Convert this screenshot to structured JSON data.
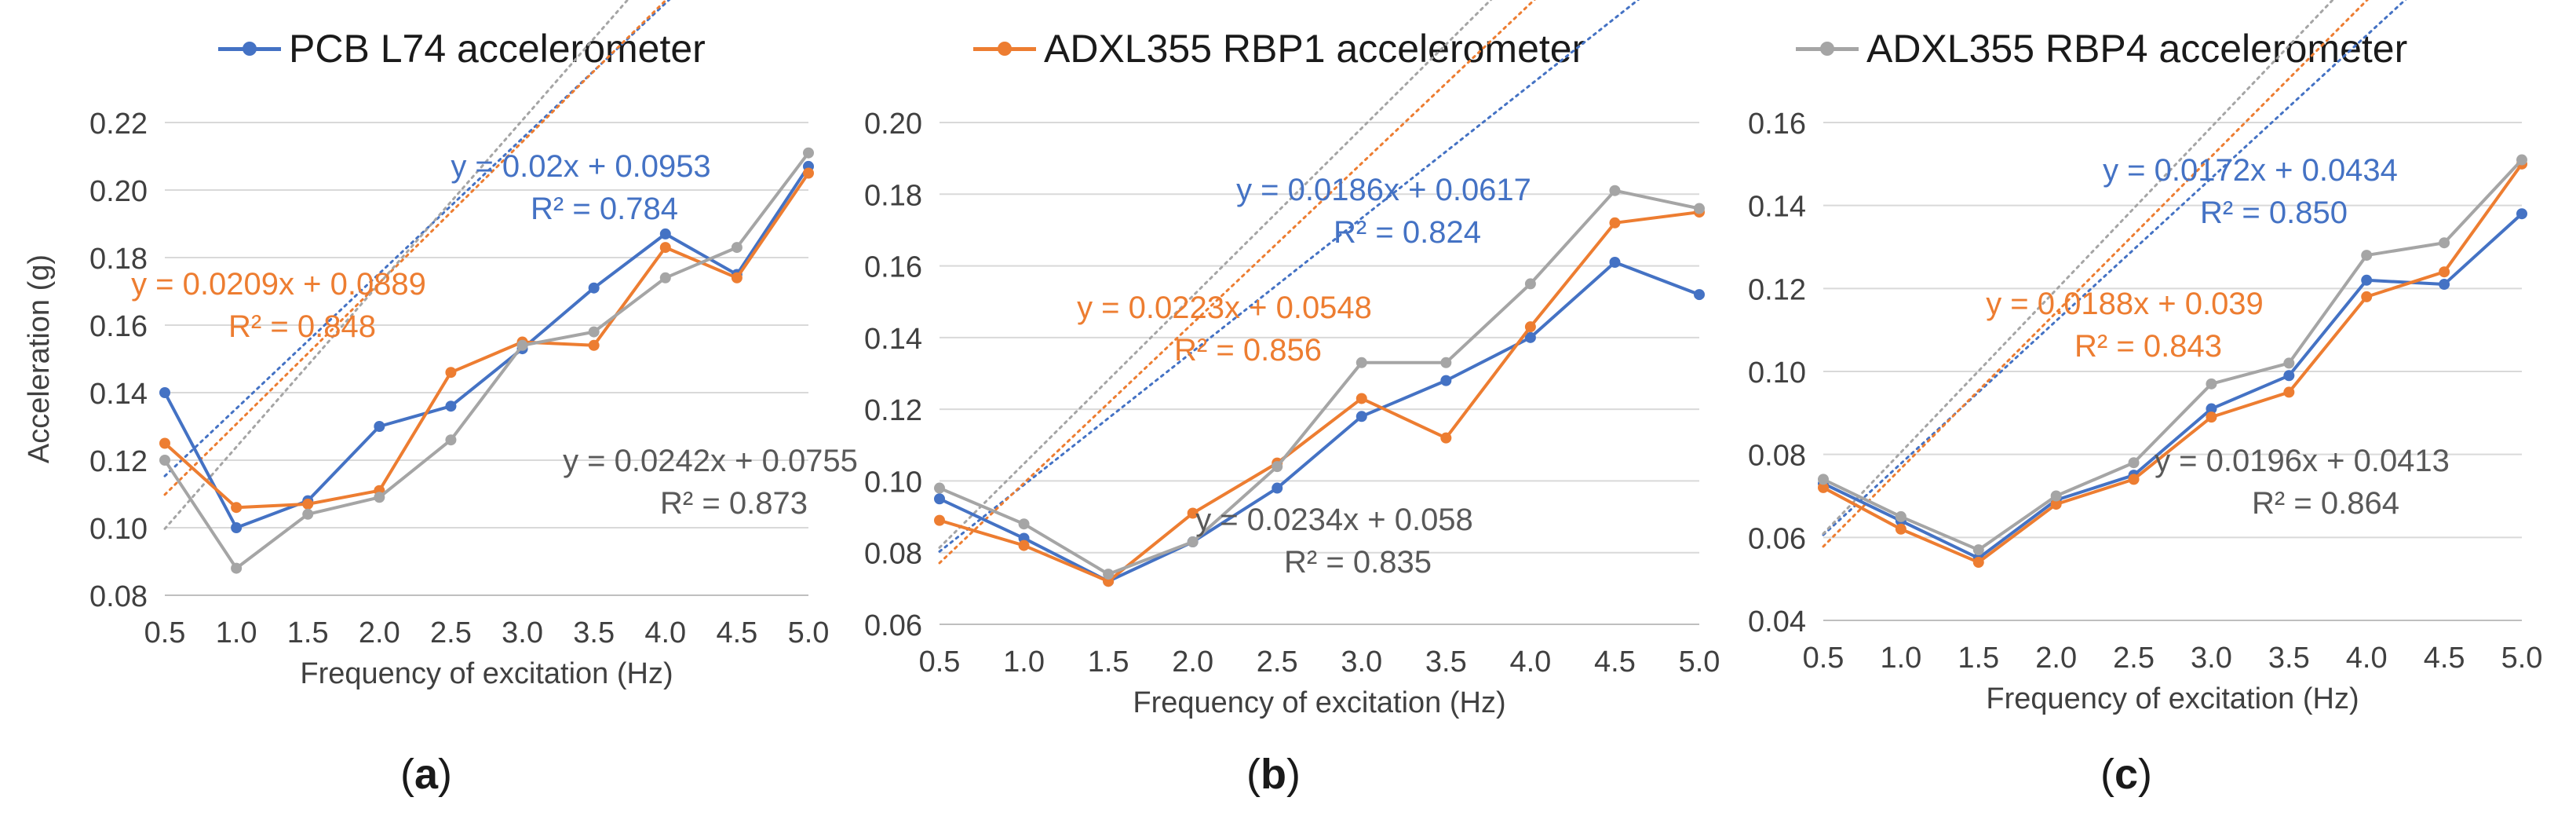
{
  "legend": [
    {
      "name": "PCB L74 accelerometer",
      "color": "#4472c4"
    },
    {
      "name": "ADXL355 RBP1 accelerometer",
      "color": "#ed7d31"
    },
    {
      "name": "ADXL355 RBP4 accelerometer",
      "color": "#a5a5a5"
    }
  ],
  "panel_labels": [
    {
      "open": "(",
      "letter": "a",
      "close": ")"
    },
    {
      "open": "(",
      "letter": "b",
      "close": ")"
    },
    {
      "open": "(",
      "letter": "c",
      "close": ")"
    }
  ],
  "chart_data": [
    {
      "type": "line",
      "panel": "a",
      "xlabel": "Frequency of excitation (Hz)",
      "ylabel": "Acceleration (g)",
      "categories": [
        "0.5",
        "1.0",
        "1.5",
        "2.0",
        "2.5",
        "3.0",
        "3.5",
        "4.0",
        "4.5",
        "5.0"
      ],
      "x": [
        0.5,
        1.0,
        1.5,
        2.0,
        2.5,
        3.0,
        3.5,
        4.0,
        4.5,
        5.0
      ],
      "ylim": [
        0.08,
        0.22
      ],
      "yticks": [
        "0.08",
        "0.10",
        "0.12",
        "0.14",
        "0.16",
        "0.18",
        "0.20",
        "0.22"
      ],
      "series": [
        {
          "name": "PCB L74 accelerometer",
          "color": "#4472c4",
          "values": [
            0.14,
            0.1,
            0.108,
            0.13,
            0.136,
            0.153,
            0.171,
            0.187,
            0.175,
            0.207
          ],
          "trendline": {
            "equation": "y = 0.02x + 0.0953",
            "r2": "R² = 0.784",
            "slope": 0.02,
            "intercept": 0.0953
          }
        },
        {
          "name": "ADXL355 RBP1 accelerometer",
          "color": "#ed7d31",
          "values": [
            0.125,
            0.106,
            0.107,
            0.111,
            0.146,
            0.155,
            0.154,
            0.183,
            0.174,
            0.205
          ],
          "trendline": {
            "equation": "y = 0.0209x + 0.0889",
            "r2": "R² = 0.848",
            "slope": 0.0209,
            "intercept": 0.0889
          }
        },
        {
          "name": "ADXL355 RBP4 accelerometer",
          "color": "#a5a5a5",
          "values": [
            0.12,
            0.088,
            0.104,
            0.109,
            0.126,
            0.154,
            0.158,
            0.174,
            0.183,
            0.211
          ],
          "trendline": {
            "equation": "y = 0.0242x + 0.0755",
            "r2": "R² = 0.873",
            "slope": 0.0242,
            "intercept": 0.0755
          }
        }
      ]
    },
    {
      "type": "line",
      "panel": "b",
      "xlabel": "Frequency of excitation (Hz)",
      "ylabel": "",
      "categories": [
        "0.5",
        "1.0",
        "1.5",
        "2.0",
        "2.5",
        "3.0",
        "3.5",
        "4.0",
        "4.5",
        "5.0"
      ],
      "x": [
        0.5,
        1.0,
        1.5,
        2.0,
        2.5,
        3.0,
        3.5,
        4.0,
        4.5,
        5.0
      ],
      "ylim": [
        0.06,
        0.2
      ],
      "yticks": [
        "0.06",
        "0.08",
        "0.10",
        "0.12",
        "0.14",
        "0.16",
        "0.18",
        "0.20"
      ],
      "series": [
        {
          "name": "PCB L74 accelerometer",
          "color": "#4472c4",
          "values": [
            0.095,
            0.084,
            0.072,
            0.083,
            0.098,
            0.118,
            0.128,
            0.14,
            0.161,
            0.152
          ],
          "trendline": {
            "equation": "y = 0.0186x + 0.0617",
            "r2": "R² = 0.824",
            "slope": 0.0186,
            "intercept": 0.0617
          }
        },
        {
          "name": "ADXL355 RBP1 accelerometer",
          "color": "#ed7d31",
          "values": [
            0.089,
            0.082,
            0.072,
            0.091,
            0.105,
            0.123,
            0.112,
            0.143,
            0.172,
            0.175
          ],
          "trendline": {
            "equation": "y = 0.0223x + 0.0548",
            "r2": "R² = 0.856",
            "slope": 0.0223,
            "intercept": 0.0548
          }
        },
        {
          "name": "ADXL355 RBP4 accelerometer",
          "color": "#a5a5a5",
          "values": [
            0.098,
            0.088,
            0.074,
            0.083,
            0.104,
            0.133,
            0.133,
            0.155,
            0.181,
            0.176
          ],
          "trendline": {
            "equation": "y = 0.0234x + 0.058",
            "r2": "R² = 0.835",
            "slope": 0.0234,
            "intercept": 0.058
          }
        }
      ]
    },
    {
      "type": "line",
      "panel": "c",
      "xlabel": "Frequency of excitation (Hz)",
      "ylabel": "",
      "categories": [
        "0.5",
        "1.0",
        "1.5",
        "2.0",
        "2.5",
        "3.0",
        "3.5",
        "4.0",
        "4.5",
        "5.0"
      ],
      "x": [
        0.5,
        1.0,
        1.5,
        2.0,
        2.5,
        3.0,
        3.5,
        4.0,
        4.5,
        5.0
      ],
      "ylim": [
        0.04,
        0.16
      ],
      "yticks": [
        "0.04",
        "0.06",
        "0.08",
        "0.10",
        "0.12",
        "0.14",
        "0.16"
      ],
      "series": [
        {
          "name": "PCB L74 accelerometer",
          "color": "#4472c4",
          "values": [
            0.073,
            0.064,
            0.055,
            0.069,
            0.075,
            0.091,
            0.099,
            0.122,
            0.121,
            0.138
          ],
          "trendline": {
            "equation": "y = 0.0172x + 0.0434",
            "r2": "R² = 0.850",
            "slope": 0.0172,
            "intercept": 0.0434
          }
        },
        {
          "name": "ADXL355 RBP1 accelerometer",
          "color": "#ed7d31",
          "values": [
            0.072,
            0.062,
            0.054,
            0.068,
            0.074,
            0.089,
            0.095,
            0.118,
            0.124,
            0.15
          ],
          "trendline": {
            "equation": "y = 0.0188x + 0.039",
            "r2": "R² = 0.843",
            "slope": 0.0188,
            "intercept": 0.039
          }
        },
        {
          "name": "ADXL355 RBP4 accelerometer",
          "color": "#a5a5a5",
          "values": [
            0.074,
            0.065,
            0.057,
            0.07,
            0.078,
            0.097,
            0.102,
            0.128,
            0.131,
            0.151
          ],
          "trendline": {
            "equation": "y = 0.0196x + 0.0413",
            "r2": "R² = 0.864",
            "slope": 0.0196,
            "intercept": 0.0413
          }
        }
      ]
    }
  ]
}
